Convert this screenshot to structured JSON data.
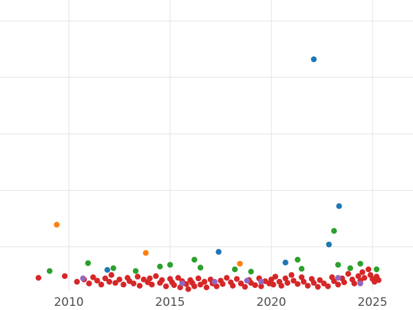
{
  "figure": {
    "background": "#ffffff",
    "grid_color": "#e2e2e2"
  },
  "chart_data": {
    "type": "scatter",
    "title": "",
    "xlabel": "",
    "ylabel": "",
    "xlim": [
      2006.6,
      2027.0
    ],
    "ylim": [
      -0.12,
      5.37
    ],
    "xticks": [
      2010,
      2015,
      2020,
      2025
    ],
    "ygrid": [
      1,
      2,
      3,
      4,
      5
    ],
    "grid": true,
    "legend": "none",
    "marker_radius": 4.2,
    "series": [
      {
        "name": "red",
        "color": "#d62728",
        "points": [
          [
            2008.5,
            0.45
          ],
          [
            2009.8,
            0.48
          ],
          [
            2010.4,
            0.38
          ],
          [
            2010.75,
            0.42
          ],
          [
            2011.0,
            0.35
          ],
          [
            2011.2,
            0.46
          ],
          [
            2011.4,
            0.4
          ],
          [
            2011.6,
            0.33
          ],
          [
            2011.8,
            0.44
          ],
          [
            2012.0,
            0.38
          ],
          [
            2012.1,
            0.5
          ],
          [
            2012.3,
            0.36
          ],
          [
            2012.5,
            0.42
          ],
          [
            2012.7,
            0.33
          ],
          [
            2012.9,
            0.45
          ],
          [
            2013.0,
            0.39
          ],
          [
            2013.2,
            0.35
          ],
          [
            2013.4,
            0.47
          ],
          [
            2013.5,
            0.31
          ],
          [
            2013.7,
            0.42
          ],
          [
            2013.9,
            0.37
          ],
          [
            2014.0,
            0.44
          ],
          [
            2014.1,
            0.33
          ],
          [
            2014.3,
            0.48
          ],
          [
            2014.5,
            0.36
          ],
          [
            2014.6,
            0.41
          ],
          [
            2014.8,
            0.3
          ],
          [
            2015.0,
            0.43
          ],
          [
            2015.1,
            0.37
          ],
          [
            2015.2,
            0.32
          ],
          [
            2015.4,
            0.45
          ],
          [
            2015.5,
            0.28
          ],
          [
            2015.6,
            0.39
          ],
          [
            2015.8,
            0.34
          ],
          [
            2015.9,
            0.25
          ],
          [
            2016.0,
            0.41
          ],
          [
            2016.1,
            0.36
          ],
          [
            2016.2,
            0.3
          ],
          [
            2016.4,
            0.44
          ],
          [
            2016.5,
            0.33
          ],
          [
            2016.7,
            0.38
          ],
          [
            2016.8,
            0.28
          ],
          [
            2017.0,
            0.42
          ],
          [
            2017.1,
            0.35
          ],
          [
            2017.3,
            0.3
          ],
          [
            2017.5,
            0.4
          ],
          [
            2017.6,
            0.34
          ],
          [
            2017.8,
            0.45
          ],
          [
            2018.0,
            0.37
          ],
          [
            2018.1,
            0.31
          ],
          [
            2018.3,
            0.43
          ],
          [
            2018.5,
            0.35
          ],
          [
            2018.7,
            0.29
          ],
          [
            2018.9,
            0.41
          ],
          [
            2019.0,
            0.36
          ],
          [
            2019.2,
            0.32
          ],
          [
            2019.4,
            0.44
          ],
          [
            2019.5,
            0.3
          ],
          [
            2019.7,
            0.39
          ],
          [
            2019.9,
            0.35
          ],
          [
            2020.0,
            0.42
          ],
          [
            2020.1,
            0.33
          ],
          [
            2020.2,
            0.47
          ],
          [
            2020.4,
            0.38
          ],
          [
            2020.5,
            0.31
          ],
          [
            2020.7,
            0.44
          ],
          [
            2020.8,
            0.36
          ],
          [
            2021.0,
            0.5
          ],
          [
            2021.1,
            0.4
          ],
          [
            2021.3,
            0.34
          ],
          [
            2021.5,
            0.46
          ],
          [
            2021.6,
            0.38
          ],
          [
            2021.8,
            0.31
          ],
          [
            2022.0,
            0.43
          ],
          [
            2022.1,
            0.36
          ],
          [
            2022.3,
            0.29
          ],
          [
            2022.4,
            0.41
          ],
          [
            2022.6,
            0.35
          ],
          [
            2022.8,
            0.3
          ],
          [
            2023.0,
            0.46
          ],
          [
            2023.1,
            0.39
          ],
          [
            2023.3,
            0.33
          ],
          [
            2023.5,
            0.44
          ],
          [
            2023.6,
            0.37
          ],
          [
            2023.8,
            0.52
          ],
          [
            2024.0,
            0.42
          ],
          [
            2024.1,
            0.35
          ],
          [
            2024.3,
            0.48
          ],
          [
            2024.4,
            0.4
          ],
          [
            2024.5,
            0.55
          ],
          [
            2024.6,
            0.45
          ],
          [
            2024.8,
            0.6
          ],
          [
            2024.9,
            0.5
          ],
          [
            2025.0,
            0.43
          ],
          [
            2025.1,
            0.38
          ],
          [
            2025.2,
            0.47
          ],
          [
            2025.3,
            0.41
          ]
        ]
      },
      {
        "name": "purple",
        "color": "#9467bd",
        "points": [
          [
            2010.7,
            0.44
          ],
          [
            2015.6,
            0.35
          ],
          [
            2017.2,
            0.38
          ],
          [
            2018.8,
            0.4
          ],
          [
            2019.5,
            0.38
          ],
          [
            2023.3,
            0.45
          ],
          [
            2024.4,
            0.35
          ]
        ]
      },
      {
        "name": "green",
        "color": "#2ca02c",
        "points": [
          [
            2009.05,
            0.57
          ],
          [
            2010.95,
            0.71
          ],
          [
            2012.2,
            0.62
          ],
          [
            2013.3,
            0.57
          ],
          [
            2014.5,
            0.65
          ],
          [
            2015.0,
            0.68
          ],
          [
            2016.2,
            0.77
          ],
          [
            2016.5,
            0.63
          ],
          [
            2018.2,
            0.6
          ],
          [
            2019.0,
            0.56
          ],
          [
            2021.3,
            0.77
          ],
          [
            2021.5,
            0.61
          ],
          [
            2023.1,
            1.28
          ],
          [
            2023.3,
            0.68
          ],
          [
            2023.9,
            0.62
          ],
          [
            2024.4,
            0.7
          ],
          [
            2025.2,
            0.6
          ]
        ]
      },
      {
        "name": "orange",
        "color": "#ff7f0e",
        "points": [
          [
            2009.4,
            1.39
          ],
          [
            2013.8,
            0.89
          ],
          [
            2018.45,
            0.7
          ]
        ]
      },
      {
        "name": "blue",
        "color": "#1f77b4",
        "points": [
          [
            2011.9,
            0.59
          ],
          [
            2017.4,
            0.91
          ],
          [
            2020.7,
            0.72
          ],
          [
            2022.1,
            4.32
          ],
          [
            2022.85,
            1.04
          ],
          [
            2023.35,
            1.72
          ]
        ]
      }
    ]
  }
}
